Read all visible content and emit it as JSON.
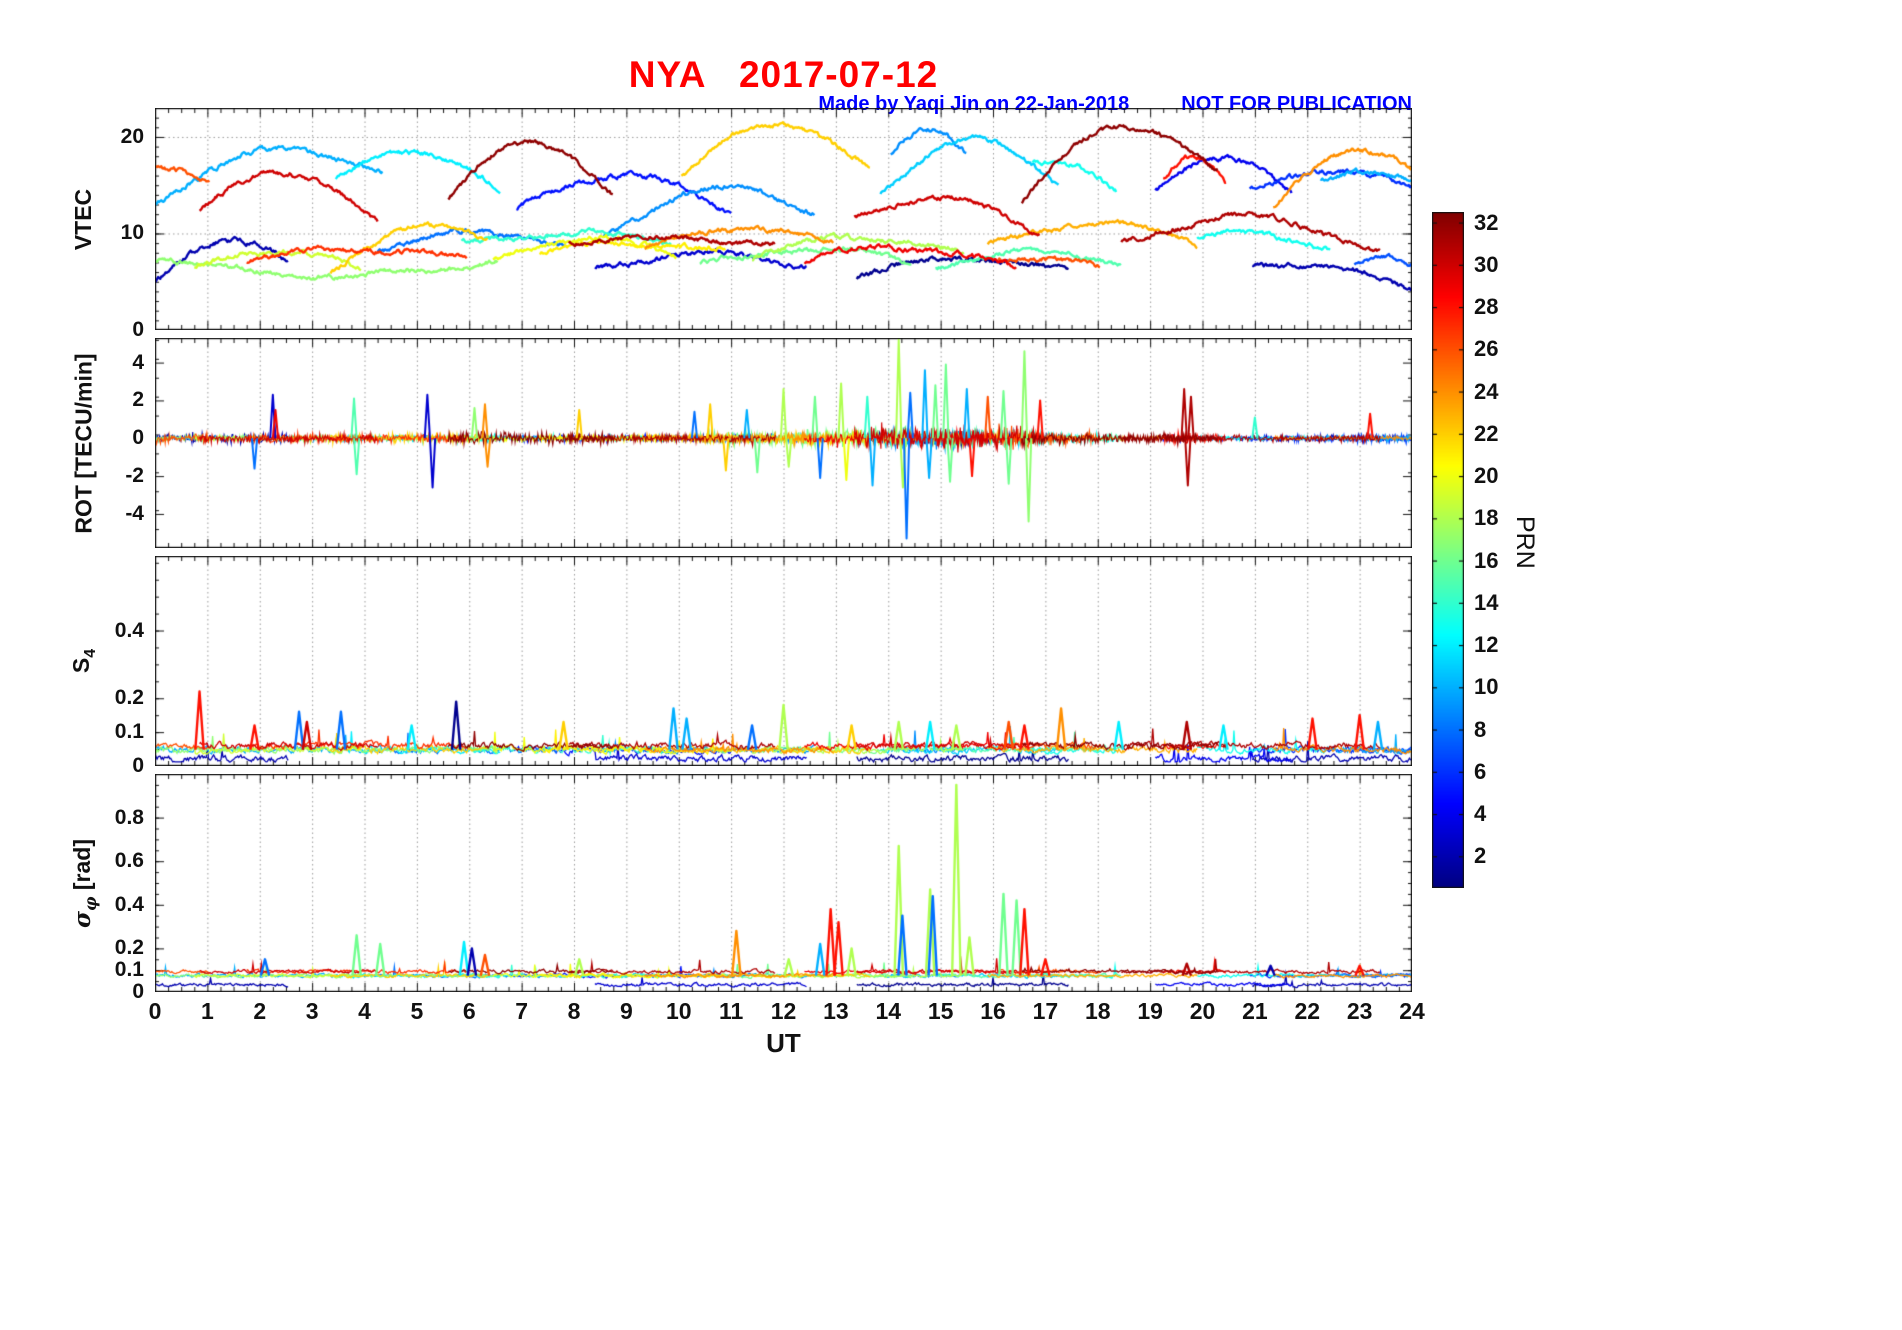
{
  "header": {
    "title": "NYA   2017-07-12",
    "credit": "Made by Yaqi Jin on 22-Jan-2018",
    "warning": "NOT FOR PUBLICATION"
  },
  "chart_data": {
    "type": "line",
    "station": "NYA",
    "date": "2017-07-12",
    "xlabel": "UT",
    "xlim": [
      0,
      24
    ],
    "xticks": [
      0,
      1,
      2,
      3,
      4,
      5,
      6,
      7,
      8,
      9,
      10,
      11,
      12,
      13,
      14,
      15,
      16,
      17,
      18,
      19,
      20,
      21,
      22,
      23,
      24
    ],
    "x_minor_per_hour": 4,
    "colorbar": {
      "label": "PRN",
      "colormap": "jet",
      "vmin": 0.5,
      "vmax": 32.5,
      "ticks": [
        2,
        4,
        6,
        8,
        10,
        12,
        14,
        16,
        18,
        20,
        22,
        24,
        26,
        28,
        30,
        32
      ]
    },
    "panels": [
      {
        "id": "vtec",
        "ylabel_parts": [
          {
            "t": "VTEC"
          }
        ],
        "ylim": [
          0,
          23
        ],
        "yticks": [
          0,
          10,
          20
        ],
        "yminor": 1,
        "grid_y": [
          10,
          20
        ],
        "series_format": [
          "prn",
          "t_start",
          "t_end",
          "t_peak",
          "v_start",
          "v_peak",
          "v_end"
        ],
        "arcs": [
          [
            10,
            0.0,
            4.35,
            3.1,
            13.0,
            18.6,
            16.3
          ],
          [
            26,
            0.0,
            1.05,
            0.4,
            16.6,
            16.2,
            15.3
          ],
          [
            30,
            0.85,
            4.25,
            2.35,
            12.3,
            16.4,
            10.9
          ],
          [
            12,
            3.45,
            6.6,
            5.2,
            15.6,
            18.5,
            14.4
          ],
          [
            32,
            5.6,
            8.75,
            7.15,
            13.4,
            19.6,
            13.6
          ],
          [
            5,
            6.9,
            11.0,
            9.3,
            12.4,
            16.1,
            11.9
          ],
          [
            9,
            8.55,
            12.6,
            10.6,
            9.6,
            14.6,
            12.2
          ],
          [
            22,
            10.05,
            13.65,
            11.9,
            15.8,
            21.4,
            16.4
          ],
          [
            11,
            13.85,
            17.25,
            15.3,
            14.3,
            19.6,
            15.2
          ],
          [
            9,
            14.05,
            15.5,
            14.6,
            18.0,
            21.0,
            18.5
          ],
          [
            30,
            13.35,
            16.9,
            14.55,
            11.6,
            13.6,
            9.9
          ],
          [
            13,
            16.75,
            18.35,
            17.0,
            17.4,
            16.8,
            14.4
          ],
          [
            32,
            16.55,
            20.3,
            18.85,
            13.3,
            21.1,
            16.1
          ],
          [
            28,
            19.25,
            20.45,
            19.85,
            15.4,
            17.9,
            15.3
          ],
          [
            4,
            19.1,
            21.7,
            20.35,
            14.2,
            18.1,
            13.9
          ],
          [
            6,
            20.9,
            24.0,
            22.35,
            14.3,
            16.6,
            14.4
          ],
          [
            24,
            21.35,
            24.0,
            23.15,
            12.4,
            18.6,
            16.4
          ],
          [
            10,
            22.25,
            24.0,
            23.2,
            15.3,
            16.6,
            15.6
          ],
          [
            17,
            0.0,
            6.55,
            4.5,
            7.5,
            5.6,
            7.2
          ],
          [
            2,
            0.0,
            2.55,
            2.15,
            4.6,
            9.4,
            6.9
          ],
          [
            19,
            0.75,
            3.95,
            2.4,
            6.3,
            8.3,
            6.1
          ],
          [
            27,
            1.75,
            5.95,
            3.8,
            7.1,
            8.4,
            7.3
          ],
          [
            22,
            3.35,
            6.35,
            5.6,
            6.1,
            10.4,
            9.8
          ],
          [
            8,
            4.25,
            7.85,
            6.1,
            8.2,
            10.1,
            8.7
          ],
          [
            14,
            5.85,
            9.85,
            7.9,
            8.9,
            10.0,
            9.1
          ],
          [
            20,
            6.45,
            9.95,
            8.2,
            7.4,
            9.4,
            7.9
          ],
          [
            31,
            7.9,
            11.85,
            9.9,
            9.2,
            9.5,
            8.9
          ],
          [
            3,
            8.4,
            12.45,
            10.4,
            6.4,
            7.9,
            6.6
          ],
          [
            24,
            9.35,
            12.95,
            11.2,
            8.4,
            10.6,
            8.8
          ],
          [
            16,
            10.4,
            14.45,
            12.4,
            6.6,
            8.4,
            6.9
          ],
          [
            18,
            11.4,
            15.45,
            13.4,
            7.6,
            9.6,
            7.9
          ],
          [
            29,
            12.4,
            16.45,
            14.4,
            7.2,
            8.6,
            6.4
          ],
          [
            1,
            13.4,
            17.45,
            14.45,
            5.6,
            7.4,
            6.1
          ],
          [
            15,
            14.9,
            18.45,
            16.6,
            6.6,
            8.1,
            6.9
          ],
          [
            23,
            15.9,
            19.9,
            17.4,
            8.6,
            11.1,
            8.9
          ],
          [
            26,
            16.1,
            18.05,
            16.9,
            7.6,
            7.2,
            6.4
          ],
          [
            31,
            18.45,
            23.4,
            19.7,
            8.9,
            11.7,
            7.9
          ],
          [
            13,
            19.9,
            22.45,
            20.9,
            9.6,
            9.9,
            8.4
          ],
          [
            2,
            20.95,
            24.0,
            21.4,
            6.9,
            6.4,
            4.4
          ],
          [
            7,
            22.9,
            24.0,
            23.5,
            6.6,
            7.3,
            6.9
          ],
          [
            21,
            7.35,
            10.9,
            9.1,
            8.1,
            9.0,
            8.3
          ]
        ]
      },
      {
        "id": "rot",
        "ylabel_parts": [
          {
            "t": "ROT [TECU/min]"
          }
        ],
        "ylim": [
          -5.8,
          5.3
        ],
        "yticks": [
          4,
          2,
          0,
          -2,
          -4
        ],
        "yminor": 1,
        "grid_y": [],
        "noise_envelope": [
          [
            0,
            0.45
          ],
          [
            2,
            0.5
          ],
          [
            4,
            0.45
          ],
          [
            6,
            0.5
          ],
          [
            8,
            0.4
          ],
          [
            10,
            0.45
          ],
          [
            11.5,
            0.6
          ],
          [
            12.5,
            0.75
          ],
          [
            14,
            1.0
          ],
          [
            15.5,
            1.0
          ],
          [
            16.5,
            0.85
          ],
          [
            17,
            0.5
          ],
          [
            18.5,
            0.35
          ],
          [
            19.6,
            0.55
          ],
          [
            20,
            0.35
          ],
          [
            22,
            0.35
          ],
          [
            24,
            0.4
          ]
        ],
        "spike_format": [
          "t",
          "prn",
          "value"
        ],
        "spikes": [
          [
            1.9,
            8,
            -1.6
          ],
          [
            2.25,
            3,
            2.3
          ],
          [
            2.3,
            29,
            1.5
          ],
          [
            3.8,
            15,
            2.1
          ],
          [
            3.85,
            15,
            -1.9
          ],
          [
            5.2,
            3,
            2.3
          ],
          [
            5.3,
            3,
            -2.6
          ],
          [
            6.1,
            17,
            1.6
          ],
          [
            6.3,
            24,
            1.8
          ],
          [
            6.35,
            24,
            -1.5
          ],
          [
            8.1,
            22,
            1.5
          ],
          [
            10.3,
            8,
            1.4
          ],
          [
            10.6,
            22,
            1.8
          ],
          [
            10.9,
            22,
            -1.7
          ],
          [
            11.3,
            10,
            1.5
          ],
          [
            11.5,
            16,
            -1.8
          ],
          [
            12.0,
            18,
            2.6
          ],
          [
            12.1,
            18,
            -1.5
          ],
          [
            12.6,
            16,
            2.2
          ],
          [
            12.7,
            8,
            -2.1
          ],
          [
            13.1,
            18,
            2.9
          ],
          [
            13.2,
            20,
            -2.2
          ],
          [
            13.6,
            14,
            2.2
          ],
          [
            13.7,
            10,
            -2.5
          ],
          [
            14.2,
            18,
            5.2
          ],
          [
            14.28,
            18,
            -2.6
          ],
          [
            14.35,
            8,
            -5.3
          ],
          [
            14.42,
            8,
            2.4
          ],
          [
            14.7,
            10,
            3.6
          ],
          [
            14.78,
            10,
            -2.1
          ],
          [
            14.9,
            16,
            2.8
          ],
          [
            15.1,
            16,
            3.9
          ],
          [
            15.18,
            16,
            -2.3
          ],
          [
            15.5,
            10,
            2.6
          ],
          [
            15.6,
            28,
            -2.0
          ],
          [
            15.9,
            26,
            2.2
          ],
          [
            16.2,
            16,
            2.5
          ],
          [
            16.3,
            16,
            -2.4
          ],
          [
            16.6,
            17,
            4.6
          ],
          [
            16.68,
            17,
            -4.4
          ],
          [
            16.9,
            28,
            2.0
          ],
          [
            19.65,
            31,
            2.6
          ],
          [
            19.72,
            31,
            -2.5
          ],
          [
            19.78,
            31,
            2.2
          ],
          [
            21.0,
            14,
            1.1
          ],
          [
            23.2,
            28,
            1.3
          ]
        ]
      },
      {
        "id": "s4",
        "ylabel_parts": [
          {
            "t": "S"
          },
          {
            "t": "4",
            "sub": true
          }
        ],
        "ylim": [
          0,
          0.62
        ],
        "yticks": [
          0.4,
          0.2,
          0.1,
          0
        ],
        "yminor": 0.05,
        "grid_y": [],
        "baseline": {
          "level": 0.048,
          "noise": 0.022
        },
        "spike_format": [
          "t",
          "prn",
          "value"
        ],
        "spikes": [
          [
            0.85,
            28,
            0.22
          ],
          [
            1.9,
            28,
            0.12
          ],
          [
            2.75,
            8,
            0.16
          ],
          [
            2.9,
            30,
            0.13
          ],
          [
            3.55,
            8,
            0.16
          ],
          [
            4.9,
            12,
            0.12
          ],
          [
            5.75,
            1,
            0.19
          ],
          [
            7.8,
            22,
            0.13
          ],
          [
            9.9,
            10,
            0.17
          ],
          [
            10.15,
            10,
            0.14
          ],
          [
            11.4,
            8,
            0.12
          ],
          [
            12.0,
            18,
            0.18
          ],
          [
            13.3,
            22,
            0.12
          ],
          [
            14.2,
            18,
            0.13
          ],
          [
            14.8,
            12,
            0.13
          ],
          [
            15.3,
            18,
            0.12
          ],
          [
            16.3,
            26,
            0.13
          ],
          [
            16.6,
            28,
            0.12
          ],
          [
            17.3,
            24,
            0.17
          ],
          [
            18.4,
            12,
            0.13
          ],
          [
            19.7,
            31,
            0.13
          ],
          [
            20.4,
            12,
            0.12
          ],
          [
            22.1,
            28,
            0.14
          ],
          [
            23.0,
            28,
            0.15
          ],
          [
            23.35,
            10,
            0.13
          ]
        ]
      },
      {
        "id": "sigma_phi",
        "ylabel_parts": [
          {
            "t": "σ",
            "italic": true
          },
          {
            "t": "φ",
            "sub": true,
            "italic": true
          },
          {
            "t": " [rad]"
          }
        ],
        "ylim": [
          0,
          1.0
        ],
        "yticks": [
          0.8,
          0.6,
          0.4,
          0.2,
          0.1,
          0
        ],
        "yminor": 0.05,
        "grid_y": [],
        "baseline": {
          "level": 0.075,
          "noise": 0.018
        },
        "spike_format": [
          "t",
          "prn",
          "value"
        ],
        "spikes": [
          [
            2.1,
            8,
            0.15
          ],
          [
            3.85,
            16,
            0.26
          ],
          [
            4.3,
            16,
            0.22
          ],
          [
            5.9,
            12,
            0.23
          ],
          [
            6.05,
            2,
            0.2
          ],
          [
            6.3,
            26,
            0.17
          ],
          [
            8.1,
            18,
            0.15
          ],
          [
            11.1,
            24,
            0.28
          ],
          [
            12.1,
            18,
            0.15
          ],
          [
            12.7,
            10,
            0.22
          ],
          [
            12.9,
            28,
            0.38
          ],
          [
            13.05,
            28,
            0.32
          ],
          [
            13.3,
            18,
            0.2
          ],
          [
            14.2,
            18,
            0.67
          ],
          [
            14.27,
            8,
            0.35
          ],
          [
            14.8,
            18,
            0.47
          ],
          [
            14.85,
            8,
            0.44
          ],
          [
            15.3,
            18,
            0.95
          ],
          [
            15.55,
            18,
            0.25
          ],
          [
            16.2,
            16,
            0.45
          ],
          [
            16.45,
            16,
            0.42
          ],
          [
            16.6,
            28,
            0.38
          ],
          [
            17.0,
            28,
            0.15
          ],
          [
            19.7,
            31,
            0.13
          ],
          [
            21.3,
            2,
            0.12
          ],
          [
            23.0,
            28,
            0.12
          ]
        ]
      }
    ]
  }
}
